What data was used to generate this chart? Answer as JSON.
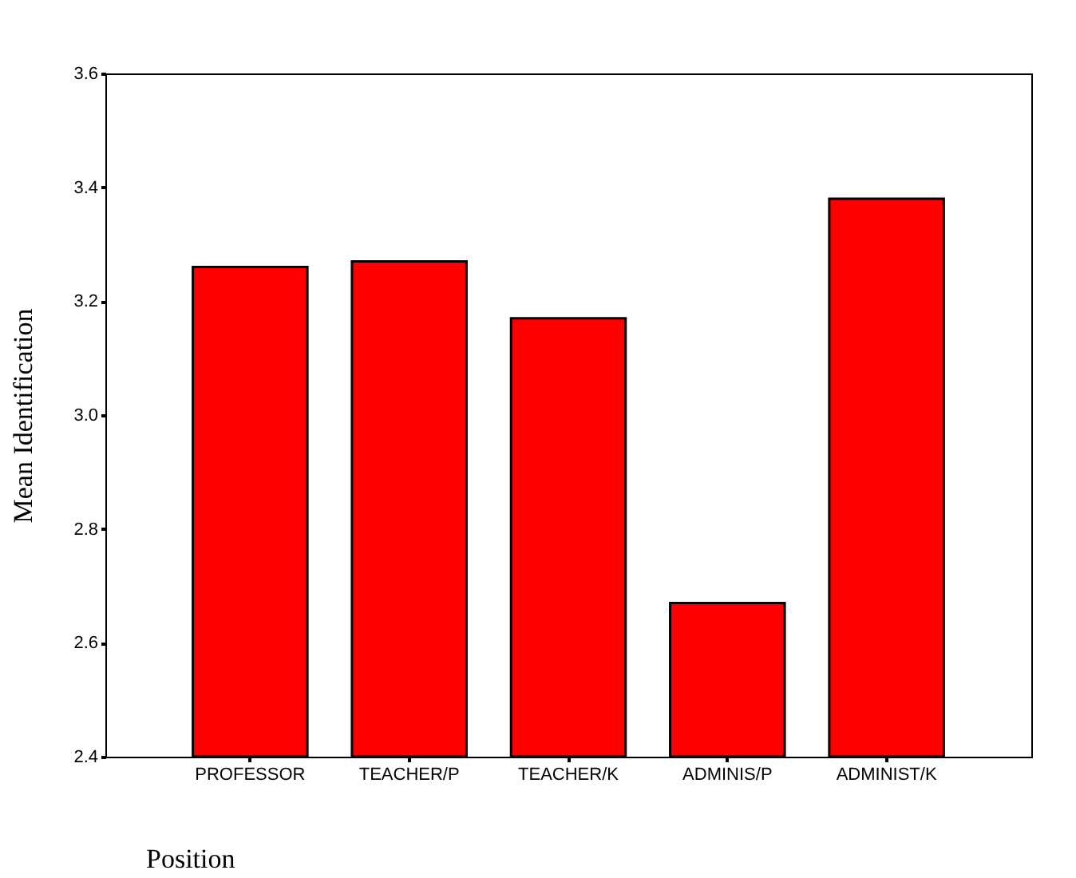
{
  "chart_data": {
    "type": "bar",
    "categories": [
      "PROFESSOR",
      "TEACHER/P",
      "TEACHER/K",
      "ADMINIS/P",
      "ADMINIST/K"
    ],
    "values": [
      3.26,
      3.27,
      3.17,
      2.67,
      3.38
    ],
    "color": "#ff0000",
    "xlabel": "Position",
    "ylabel": "Mean  Identification",
    "ylim": [
      2.4,
      3.6
    ],
    "yticks": [
      2.4,
      2.6,
      2.8,
      {
        "value": 3,
        "label": "3.0"
      },
      3.2,
      3.4,
      3.6
    ],
    "grid": false
  }
}
